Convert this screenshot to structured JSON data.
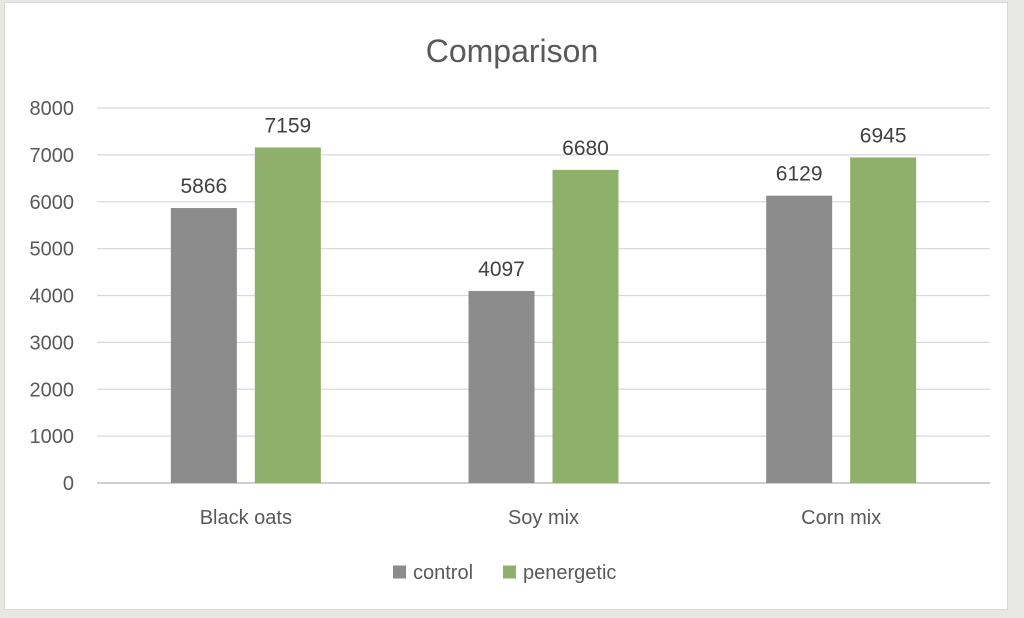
{
  "chart_data": {
    "type": "bar",
    "title": "Comparison",
    "categories": [
      "Black oats",
      "Soy mix",
      "Corn mix"
    ],
    "series": [
      {
        "name": "control",
        "values": [
          5866,
          4097,
          6129
        ],
        "color": "#8c8c8c"
      },
      {
        "name": "penergetic",
        "values": [
          7159,
          6680,
          6945
        ],
        "color": "#8fb06a"
      }
    ],
    "ylim": [
      0,
      8000
    ],
    "yticks": [
      0,
      1000,
      2000,
      3000,
      4000,
      5000,
      6000,
      7000,
      8000
    ],
    "grid": true,
    "legend_position": "bottom",
    "data_labels": true
  }
}
